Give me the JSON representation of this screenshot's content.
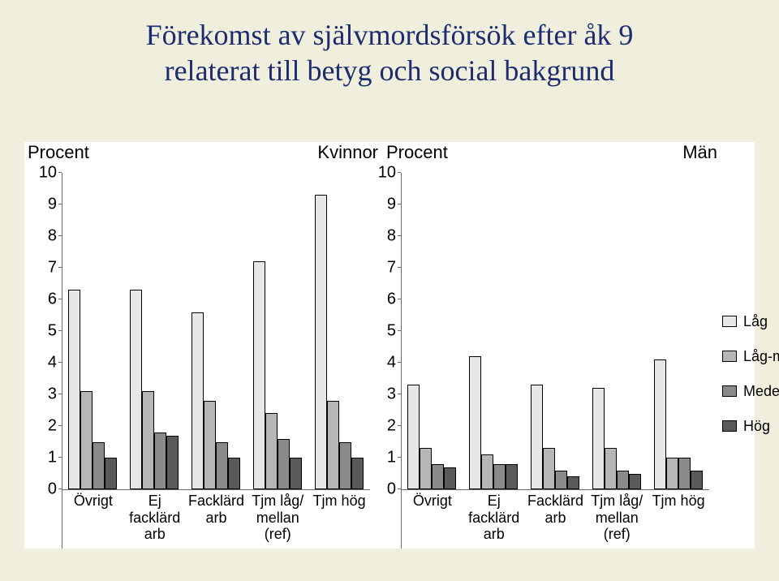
{
  "title_line1": "Förekomst av självmordsförsök efter åk 9",
  "title_line2": "relaterat till betyg och social bakgrund",
  "left": {
    "y_label": "Procent",
    "sub_label": "Kvinnor",
    "ymax": 10,
    "yticks": [
      0,
      1,
      2,
      3,
      4,
      5,
      6,
      7,
      8,
      9,
      10
    ],
    "categories": [
      {
        "label": "Övrigt",
        "vals": [
          6.3,
          3.1,
          1.5,
          1.0
        ]
      },
      {
        "label": "Ej facklärd\narb",
        "vals": [
          6.3,
          3.1,
          1.8,
          1.7
        ]
      },
      {
        "label": "Facklärd\narb",
        "vals": [
          5.6,
          2.8,
          1.5,
          1.0
        ]
      },
      {
        "label": "Tjm låg/\nmellan\n(ref)",
        "vals": [
          7.2,
          2.4,
          1.6,
          1.0
        ]
      },
      {
        "label": "Tjm hög",
        "vals": [
          9.3,
          2.8,
          1.5,
          1.0
        ]
      }
    ]
  },
  "right": {
    "y_label": "Procent",
    "sub_label": "Män",
    "ymax": 10,
    "yticks": [
      0,
      1,
      2,
      3,
      4,
      5,
      6,
      7,
      8,
      9,
      10
    ],
    "categories": [
      {
        "label": "Övrigt",
        "vals": [
          3.3,
          1.3,
          0.8,
          0.7
        ]
      },
      {
        "label": "Ej facklärd\narb",
        "vals": [
          4.2,
          1.1,
          0.8,
          0.8
        ]
      },
      {
        "label": "Facklärd\narb",
        "vals": [
          3.3,
          1.3,
          0.6,
          0.4
        ]
      },
      {
        "label": "Tjm låg/\nmellan\n(ref)",
        "vals": [
          3.2,
          1.3,
          0.6,
          0.5
        ]
      },
      {
        "label": "Tjm hög",
        "vals": [
          4.1,
          1.0,
          1.0,
          0.6
        ]
      }
    ]
  },
  "series_colors": [
    "#e7e7e7",
    "#b6b6b6",
    "#8a8a8a",
    "#5a5a5a"
  ],
  "legend": [
    "Låg",
    "Låg-medel",
    "Medel-hög",
    "Hög"
  ]
}
